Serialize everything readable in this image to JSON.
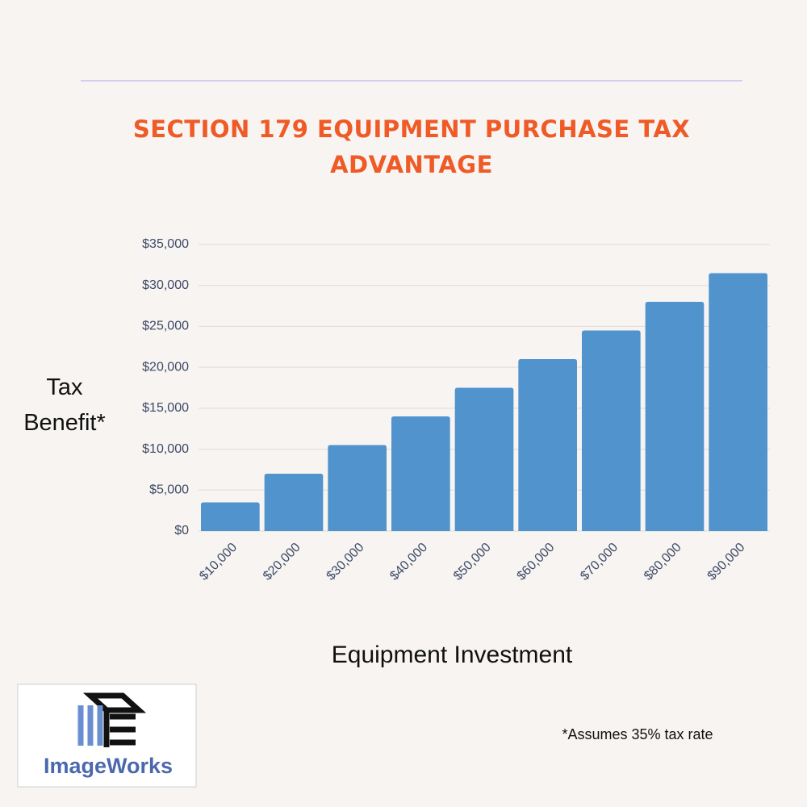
{
  "chart_data": {
    "type": "bar",
    "title": "SECTION 179 EQUIPMENT PURCHASE TAX ADVANTAGE",
    "ylabel": "Tax Benefit*",
    "xlabel": "Equipment Investment",
    "footnote": "*Assumes 35% tax rate",
    "categories": [
      "$10,000",
      "$20,000",
      "$30,000",
      "$40,000",
      "$50,000",
      "$60,000",
      "$70,000",
      "$80,000",
      "$90,000"
    ],
    "values": [
      3500,
      7000,
      10500,
      14000,
      17500,
      21000,
      24500,
      28000,
      31500
    ],
    "color": "#5093cd",
    "ylim": [
      0,
      35000
    ],
    "yticks": [
      {
        "value": 0,
        "label": "$0"
      },
      {
        "value": 5000,
        "label": "$5,000"
      },
      {
        "value": 10000,
        "label": "$10,000"
      },
      {
        "value": 15000,
        "label": "$15,000"
      },
      {
        "value": 20000,
        "label": "$20,000"
      },
      {
        "value": 25000,
        "label": "$25,000"
      },
      {
        "value": 30000,
        "label": "$30,000"
      },
      {
        "value": 35000,
        "label": "$35,000"
      }
    ],
    "grid": true
  },
  "logo": {
    "text": "ImageWorks"
  }
}
